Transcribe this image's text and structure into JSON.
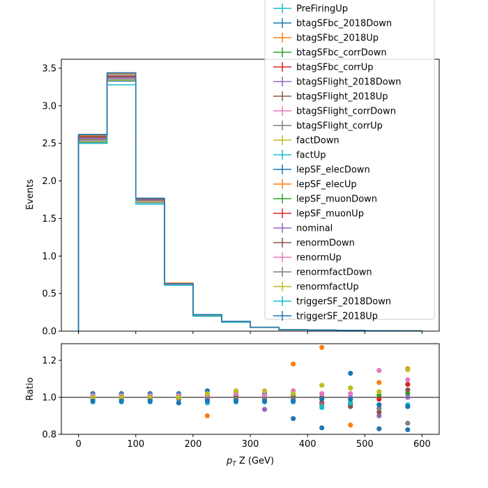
{
  "chart_data": [
    {
      "type": "line",
      "subtype": "step-histogram",
      "title": "",
      "xlabel": "",
      "ylabel": "Events",
      "xlim": [
        -30,
        630
      ],
      "ylim": [
        0,
        3.62
      ],
      "yticks": [
        "0.0",
        "0.5",
        "1.0",
        "1.5",
        "2.0",
        "2.5",
        "3.0",
        "3.5"
      ],
      "ytick_values": [
        0,
        0.5,
        1.0,
        1.5,
        2.0,
        2.5,
        3.0,
        3.5
      ],
      "bin_edges": [
        0,
        50,
        100,
        150,
        200,
        250,
        300,
        350,
        400,
        450,
        500,
        550,
        600
      ],
      "grid": false,
      "legend_position": "upper-right",
      "series": [
        {
          "name": "PreFiringUp",
          "color": "#17becf",
          "values": [
            2.54,
            3.36,
            1.73,
            0.62,
            0.21,
            0.12,
            0.05,
            0.02,
            0.015,
            0.01,
            0.006,
            0.004
          ]
        },
        {
          "name": "btagSFbc_2018Down",
          "color": "#1f77b4",
          "values": [
            2.55,
            3.37,
            1.74,
            0.62,
            0.21,
            0.12,
            0.05,
            0.02,
            0.015,
            0.01,
            0.006,
            0.004
          ]
        },
        {
          "name": "btagSFbc_2018Up",
          "color": "#ff7f0e",
          "values": [
            2.6,
            3.42,
            1.76,
            0.63,
            0.21,
            0.12,
            0.05,
            0.02,
            0.016,
            0.01,
            0.006,
            0.004
          ]
        },
        {
          "name": "btagSFbc_corrDown",
          "color": "#2ca02c",
          "values": [
            2.55,
            3.37,
            1.74,
            0.62,
            0.21,
            0.12,
            0.05,
            0.02,
            0.015,
            0.01,
            0.006,
            0.004
          ]
        },
        {
          "name": "btagSFbc_corrUp",
          "color": "#d62728",
          "values": [
            2.59,
            3.4,
            1.76,
            0.63,
            0.21,
            0.12,
            0.05,
            0.02,
            0.016,
            0.01,
            0.006,
            0.004
          ]
        },
        {
          "name": "btagSFlight_2018Down",
          "color": "#9467bd",
          "values": [
            2.56,
            3.38,
            1.74,
            0.62,
            0.21,
            0.12,
            0.05,
            0.02,
            0.015,
            0.01,
            0.006,
            0.004
          ]
        },
        {
          "name": "btagSFlight_2018Up",
          "color": "#8c564b",
          "values": [
            2.58,
            3.39,
            1.75,
            0.63,
            0.21,
            0.12,
            0.05,
            0.02,
            0.016,
            0.01,
            0.006,
            0.004
          ]
        },
        {
          "name": "btagSFlight_corrDown",
          "color": "#e377c2",
          "values": [
            2.56,
            3.38,
            1.74,
            0.62,
            0.21,
            0.12,
            0.05,
            0.02,
            0.015,
            0.01,
            0.006,
            0.004
          ]
        },
        {
          "name": "btagSFlight_corrUp",
          "color": "#7f7f7f",
          "values": [
            2.58,
            3.39,
            1.75,
            0.63,
            0.21,
            0.12,
            0.05,
            0.02,
            0.016,
            0.01,
            0.006,
            0.004
          ]
        },
        {
          "name": "factDown",
          "color": "#bcbd22",
          "values": [
            2.59,
            3.4,
            1.76,
            0.63,
            0.21,
            0.12,
            0.05,
            0.02,
            0.016,
            0.01,
            0.006,
            0.004
          ]
        },
        {
          "name": "factUp",
          "color": "#17becf",
          "values": [
            2.53,
            3.35,
            1.72,
            0.61,
            0.21,
            0.12,
            0.05,
            0.02,
            0.015,
            0.01,
            0.006,
            0.004
          ]
        },
        {
          "name": "lepSF_elecDown",
          "color": "#1f77b4",
          "values": [
            2.51,
            3.33,
            1.71,
            0.61,
            0.2,
            0.12,
            0.05,
            0.02,
            0.015,
            0.01,
            0.006,
            0.004
          ]
        },
        {
          "name": "lepSF_elecUp",
          "color": "#ff7f0e",
          "values": [
            2.62,
            3.43,
            1.77,
            0.64,
            0.22,
            0.13,
            0.05,
            0.02,
            0.016,
            0.01,
            0.006,
            0.004
          ]
        },
        {
          "name": "lepSF_muonDown",
          "color": "#2ca02c",
          "values": [
            2.55,
            3.37,
            1.74,
            0.62,
            0.21,
            0.12,
            0.05,
            0.02,
            0.015,
            0.01,
            0.006,
            0.004
          ]
        },
        {
          "name": "lepSF_muonUp",
          "color": "#d62728",
          "values": [
            2.58,
            3.39,
            1.75,
            0.63,
            0.21,
            0.12,
            0.05,
            0.02,
            0.016,
            0.01,
            0.006,
            0.004
          ]
        },
        {
          "name": "nominal",
          "color": "#9467bd",
          "values": [
            2.57,
            3.38,
            1.75,
            0.62,
            0.21,
            0.12,
            0.05,
            0.02,
            0.015,
            0.01,
            0.006,
            0.004
          ]
        },
        {
          "name": "renormDown",
          "color": "#8c564b",
          "values": [
            2.59,
            3.4,
            1.76,
            0.63,
            0.21,
            0.12,
            0.05,
            0.02,
            0.016,
            0.01,
            0.006,
            0.004
          ]
        },
        {
          "name": "renormUp",
          "color": "#e377c2",
          "values": [
            2.54,
            3.36,
            1.73,
            0.62,
            0.21,
            0.12,
            0.05,
            0.02,
            0.015,
            0.01,
            0.006,
            0.004
          ]
        },
        {
          "name": "renormfactDown",
          "color": "#7f7f7f",
          "values": [
            2.61,
            3.42,
            1.77,
            0.63,
            0.21,
            0.12,
            0.05,
            0.02,
            0.016,
            0.01,
            0.006,
            0.004
          ]
        },
        {
          "name": "renormfactUp",
          "color": "#bcbd22",
          "values": [
            2.52,
            3.34,
            1.72,
            0.61,
            0.2,
            0.12,
            0.05,
            0.02,
            0.015,
            0.01,
            0.006,
            0.004
          ]
        },
        {
          "name": "triggerSF_2018Down",
          "color": "#17becf",
          "values": [
            2.5,
            3.28,
            1.69,
            0.61,
            0.2,
            0.12,
            0.05,
            0.02,
            0.015,
            0.01,
            0.006,
            0.004
          ]
        },
        {
          "name": "triggerSF_2018Up",
          "color": "#1f77b4",
          "values": [
            2.62,
            3.44,
            1.77,
            0.63,
            0.22,
            0.13,
            0.05,
            0.02,
            0.016,
            0.01,
            0.006,
            0.004
          ]
        }
      ]
    },
    {
      "type": "scatter",
      "title": "",
      "xlabel": "p_T Z (GeV)",
      "ylabel": "Ratio",
      "xlim": [
        -30,
        630
      ],
      "ylim": [
        0.8,
        1.29
      ],
      "xticks": [
        "0",
        "100",
        "200",
        "300",
        "400",
        "500",
        "600"
      ],
      "xtick_values": [
        0,
        100,
        200,
        300,
        400,
        500,
        600
      ],
      "yticks": [
        "0.8",
        "1.0",
        "1.2"
      ],
      "ytick_values": [
        0.8,
        1.0,
        1.2
      ],
      "reference_line": 1.0,
      "grid": false,
      "x": [
        25,
        75,
        125,
        175,
        225,
        275,
        325,
        375,
        425,
        475,
        525,
        575
      ],
      "series": [
        {
          "color": "#1f77b4",
          "values": [
            1.02,
            1.02,
            1.02,
            1.02,
            1.035,
            1.03,
            1.02,
            0.885,
            0.835,
            1.13,
            0.83,
            0.825
          ]
        },
        {
          "color": "#ff7f0e",
          "values": [
            1.0,
            1.0,
            1.0,
            1.0,
            0.9,
            1.0,
            1.0,
            1.18,
            1.27,
            0.85,
            1.08,
            1.155
          ]
        },
        {
          "color": "#2ca02c",
          "values": [
            1.01,
            1.01,
            1.01,
            1.01,
            1.01,
            1.01,
            1.01,
            1.01,
            1.0,
            1.05,
            1.01,
            1.02
          ]
        },
        {
          "color": "#d62728",
          "values": [
            0.99,
            0.99,
            0.99,
            0.99,
            0.99,
            0.99,
            0.99,
            0.98,
            0.97,
            0.96,
            0.99,
            1.07
          ]
        },
        {
          "color": "#9467bd",
          "values": [
            1.0,
            1.0,
            1.0,
            1.0,
            1.0,
            1.0,
            0.935,
            1.0,
            1.0,
            1.0,
            0.9,
            1.0
          ]
        },
        {
          "color": "#8c564b",
          "values": [
            1.0,
            1.0,
            1.0,
            1.0,
            1.0,
            1.0,
            1.0,
            1.0,
            1.0,
            0.95,
            0.92,
            1.04
          ]
        },
        {
          "color": "#e377c2",
          "values": [
            1.01,
            1.01,
            1.01,
            1.01,
            1.01,
            1.02,
            1.01,
            1.035,
            1.02,
            1.02,
            1.145,
            1.095
          ]
        },
        {
          "color": "#7f7f7f",
          "values": [
            0.99,
            0.99,
            0.99,
            0.99,
            0.99,
            0.99,
            0.99,
            0.99,
            0.96,
            0.97,
            0.94,
            0.86
          ]
        },
        {
          "color": "#bcbd22",
          "values": [
            1.0,
            1.0,
            1.0,
            1.0,
            1.02,
            1.035,
            1.035,
            1.02,
            1.065,
            1.05,
            1.03,
            1.15
          ]
        },
        {
          "color": "#17becf",
          "values": [
            0.975,
            0.975,
            0.975,
            0.97,
            0.97,
            0.975,
            0.975,
            0.975,
            0.945,
            0.97,
            0.96,
            0.96
          ]
        },
        {
          "color": "#1f77b4",
          "values": [
            0.98,
            0.98,
            0.98,
            0.97,
            0.98,
            0.98,
            0.98,
            0.98,
            0.99,
            0.99,
            0.96,
            0.95
          ]
        }
      ]
    }
  ]
}
